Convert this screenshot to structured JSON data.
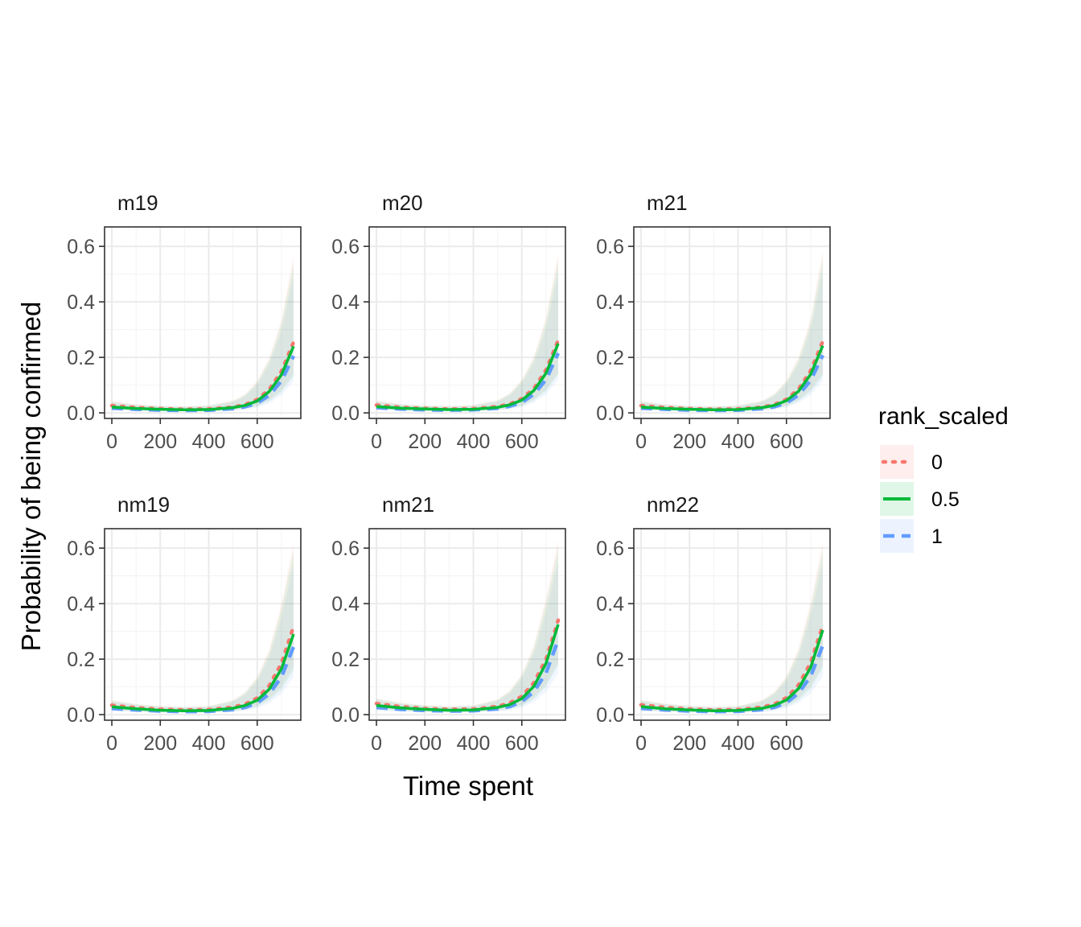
{
  "chart_data": {
    "type": "line",
    "xlabel": "Time spent",
    "ylabel": "Probability of being confirmed",
    "xlim": [
      -30,
      780
    ],
    "ylim": [
      -0.02,
      0.67
    ],
    "x_ticks": [
      0,
      200,
      400,
      600
    ],
    "x_tick_labels": [
      "0",
      "200",
      "400",
      "600"
    ],
    "y_ticks": [
      0,
      0.2,
      0.4,
      0.6
    ],
    "y_tick_labels": [
      "0.0",
      "0.2",
      "0.4",
      "0.6"
    ],
    "grid": true,
    "x": [
      0,
      100,
      200,
      300,
      400,
      500,
      550,
      600,
      650,
      700,
      750
    ],
    "legend": {
      "title": "rank_scaled",
      "placement": "right",
      "entries": [
        {
          "label": "0",
          "color": "#F8766D",
          "linetype": "dotted"
        },
        {
          "label": "0.5",
          "color": "#00BA38",
          "linetype": "solid"
        },
        {
          "label": "1",
          "color": "#619CFF",
          "linetype": "dashed"
        }
      ]
    },
    "facets": [
      {
        "name": "m19",
        "series": [
          {
            "name": "0",
            "values": [
              0.026,
              0.019,
              0.015,
              0.013,
              0.014,
              0.021,
              0.03,
              0.048,
              0.085,
              0.15,
              0.255
            ]
          },
          {
            "name": "0.5",
            "values": [
              0.021,
              0.016,
              0.013,
              0.011,
              0.012,
              0.019,
              0.027,
              0.043,
              0.077,
              0.137,
              0.24
            ]
          },
          {
            "name": "1",
            "values": [
              0.017,
              0.013,
              0.01,
              0.009,
              0.01,
              0.015,
              0.022,
              0.035,
              0.063,
              0.115,
              0.205
            ]
          }
        ],
        "ribbon_upper": [
          0.04,
          0.03,
          0.025,
          0.023,
          0.026,
          0.042,
          0.065,
          0.11,
          0.19,
          0.32,
          0.54
        ]
      },
      {
        "name": "m20",
        "series": [
          {
            "name": "0",
            "values": [
              0.028,
              0.02,
              0.016,
              0.014,
              0.015,
              0.023,
              0.032,
              0.051,
              0.088,
              0.155,
              0.262
            ]
          },
          {
            "name": "0.5",
            "values": [
              0.023,
              0.017,
              0.014,
              0.012,
              0.013,
              0.02,
              0.029,
              0.046,
              0.081,
              0.143,
              0.25
            ]
          },
          {
            "name": "1",
            "values": [
              0.019,
              0.014,
              0.011,
              0.01,
              0.011,
              0.017,
              0.024,
              0.038,
              0.067,
              0.12,
              0.215
            ]
          }
        ],
        "ribbon_upper": [
          0.042,
          0.031,
          0.026,
          0.024,
          0.027,
          0.044,
          0.068,
          0.115,
          0.195,
          0.33,
          0.55
        ]
      },
      {
        "name": "m21",
        "series": [
          {
            "name": "0",
            "values": [
              0.026,
              0.019,
              0.015,
              0.013,
              0.014,
              0.021,
              0.03,
              0.049,
              0.086,
              0.152,
              0.258
            ]
          },
          {
            "name": "0.5",
            "values": [
              0.021,
              0.016,
              0.013,
              0.011,
              0.012,
              0.019,
              0.027,
              0.044,
              0.078,
              0.139,
              0.242
            ]
          },
          {
            "name": "1",
            "values": [
              0.017,
              0.013,
              0.01,
              0.009,
              0.01,
              0.015,
              0.022,
              0.036,
              0.064,
              0.117,
              0.208
            ]
          }
        ],
        "ribbon_upper": [
          0.04,
          0.03,
          0.025,
          0.023,
          0.026,
          0.042,
          0.066,
          0.112,
          0.192,
          0.325,
          0.56
        ]
      },
      {
        "name": "nm19",
        "series": [
          {
            "name": "0",
            "values": [
              0.034,
              0.025,
              0.019,
              0.017,
              0.018,
              0.027,
              0.038,
              0.06,
              0.105,
              0.185,
              0.318
            ]
          },
          {
            "name": "0.5",
            "values": [
              0.028,
              0.021,
              0.016,
              0.014,
              0.015,
              0.023,
              0.033,
              0.052,
              0.092,
              0.165,
              0.29
            ]
          },
          {
            "name": "1",
            "values": [
              0.022,
              0.017,
              0.013,
              0.011,
              0.012,
              0.018,
              0.026,
              0.042,
              0.075,
              0.135,
              0.245
            ]
          }
        ],
        "ribbon_upper": [
          0.05,
          0.037,
          0.03,
          0.027,
          0.03,
          0.05,
          0.078,
          0.13,
          0.225,
          0.38,
          0.59
        ]
      },
      {
        "name": "nm21",
        "series": [
          {
            "name": "0",
            "values": [
              0.04,
              0.029,
              0.022,
              0.019,
              0.02,
              0.03,
              0.042,
              0.066,
              0.115,
              0.2,
              0.34
            ]
          },
          {
            "name": "0.5",
            "values": [
              0.033,
              0.024,
              0.019,
              0.016,
              0.017,
              0.026,
              0.036,
              0.058,
              0.102,
              0.185,
              0.325
            ]
          },
          {
            "name": "1",
            "values": [
              0.026,
              0.019,
              0.015,
              0.013,
              0.014,
              0.021,
              0.029,
              0.047,
              0.083,
              0.15,
              0.27
            ]
          }
        ],
        "ribbon_upper": [
          0.056,
          0.041,
          0.033,
          0.029,
          0.032,
          0.053,
          0.083,
          0.14,
          0.24,
          0.4,
          0.6
        ]
      },
      {
        "name": "nm22",
        "series": [
          {
            "name": "0",
            "values": [
              0.035,
              0.026,
              0.02,
              0.017,
              0.018,
              0.027,
              0.038,
              0.061,
              0.107,
              0.188,
              0.322
            ]
          },
          {
            "name": "0.5",
            "values": [
              0.029,
              0.021,
              0.017,
              0.014,
              0.015,
              0.023,
              0.033,
              0.053,
              0.094,
              0.17,
              0.305
            ]
          },
          {
            "name": "1",
            "values": [
              0.023,
              0.017,
              0.013,
              0.011,
              0.012,
              0.018,
              0.026,
              0.043,
              0.077,
              0.138,
              0.25
            ]
          }
        ],
        "ribbon_upper": [
          0.051,
          0.038,
          0.031,
          0.027,
          0.03,
          0.05,
          0.079,
          0.132,
          0.228,
          0.385,
          0.595
        ]
      }
    ]
  }
}
